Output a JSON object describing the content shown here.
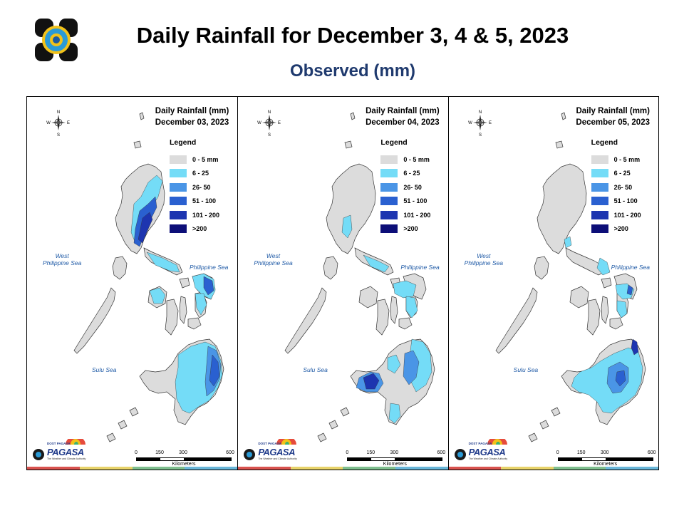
{
  "title": "Daily Rainfall for December 3, 4 & 5, 2023",
  "subtitle": "Observed (mm)",
  "legend": {
    "title": "Legend",
    "items": [
      {
        "label": "0 - 5 mm",
        "color": "#dcdcdc"
      },
      {
        "label": "6 - 25",
        "color": "#74dcf7"
      },
      {
        "label": "26- 50",
        "color": "#4a95e6"
      },
      {
        "label": "51 - 100",
        "color": "#2a60d0"
      },
      {
        "label": "101 - 200",
        "color": "#1d35b0"
      },
      {
        "label": ">200",
        "color": "#0c0e78"
      }
    ]
  },
  "compass": {
    "n": "N",
    "s": "S",
    "e": "E",
    "w": "W"
  },
  "seas": {
    "west": "West\nPhilippine Sea",
    "east": "Philippine Sea",
    "sulu": "Sulu Sea"
  },
  "scale": {
    "ticks": [
      "0",
      "150",
      "300",
      "600"
    ],
    "unit": "Kilometers"
  },
  "logo": {
    "brand": "DOST PAGASA",
    "text": "PAGASA",
    "tagline": "The Weather and Climate Authority"
  },
  "panels": [
    {
      "map_title": "Daily Rainfall (mm)",
      "date": "December 03, 2023"
    },
    {
      "map_title": "Daily Rainfall (mm)",
      "date": "December 04, 2023"
    },
    {
      "map_title": "Daily Rainfall (mm)",
      "date": "December 05, 2023"
    }
  ],
  "bottom_bar_colors": [
    "#d9534f",
    "#e8d36a",
    "#7fbf8f",
    "#6ab7d9"
  ]
}
